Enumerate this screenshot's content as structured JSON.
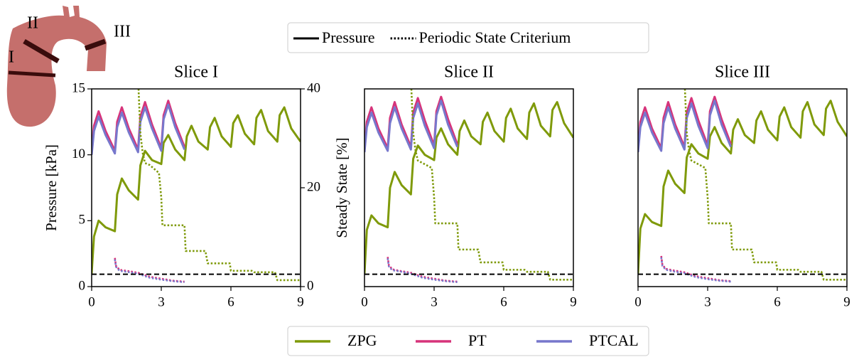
{
  "illustration": {
    "labels": [
      "I",
      "II",
      "III"
    ]
  },
  "line_style_legend": [
    {
      "label": "Pressure",
      "style": "solid"
    },
    {
      "label": "Periodic State Criterium",
      "style": "dotted"
    }
  ],
  "chart_data": [
    {
      "type": "line",
      "title": "Slice I",
      "y_label": "Pressure [kPa]",
      "y2_label": "Steady State [%]",
      "xlim": [
        0,
        9
      ],
      "xticks": [
        0,
        3,
        6,
        9
      ],
      "ylim": [
        0,
        15
      ],
      "yticks": [
        0,
        5,
        10,
        15
      ],
      "y2lim": [
        0,
        40
      ],
      "y2ticks": [
        0,
        20,
        40
      ],
      "threshold": 2.5,
      "series": [
        {
          "name": "ZPG",
          "color": "#7f9a0a",
          "style": "solid",
          "x": [
            0,
            0.1,
            0.3,
            0.6,
            1.0,
            1.1,
            1.3,
            1.6,
            2.0,
            2.1,
            2.3,
            2.6,
            3.0,
            3.1,
            3.3,
            3.6,
            4.0,
            4.1,
            4.3,
            4.6,
            5.0,
            5.1,
            5.3,
            5.6,
            6.0,
            6.1,
            6.3,
            6.6,
            7.0,
            7.1,
            7.3,
            7.6,
            8.0,
            8.1,
            8.3,
            8.6,
            9.0
          ],
          "values": [
            1.0,
            3.8,
            5.0,
            4.5,
            4.2,
            7.0,
            8.2,
            7.3,
            6.6,
            9.2,
            10.3,
            9.6,
            9.3,
            10.9,
            11.5,
            10.4,
            9.6,
            11.4,
            12.2,
            11.0,
            10.4,
            12.1,
            12.8,
            11.4,
            10.6,
            12.4,
            13.0,
            11.6,
            10.8,
            12.8,
            13.4,
            11.8,
            11.0,
            13.0,
            13.6,
            12.0,
            11.0
          ]
        },
        {
          "name": "PT",
          "color": "#d6337a",
          "style": "solid",
          "x": [
            0,
            0.1,
            0.3,
            0.6,
            1.0,
            1.1,
            1.3,
            1.6,
            2.0,
            2.1,
            2.3,
            2.6,
            3.0,
            3.1,
            3.3,
            3.6,
            4.0
          ],
          "values": [
            10.3,
            12.2,
            13.3,
            11.8,
            10.3,
            12.5,
            13.6,
            12.0,
            10.4,
            12.9,
            14.0,
            12.3,
            10.5,
            13.0,
            14.1,
            12.4,
            10.6
          ]
        },
        {
          "name": "PTCAL",
          "color": "#7777cc",
          "style": "solid",
          "x": [
            0,
            0.1,
            0.3,
            0.6,
            1.0,
            1.1,
            1.3,
            1.6,
            2.0,
            2.1,
            2.3,
            2.6,
            3.0,
            3.1,
            3.3,
            3.6,
            4.0
          ],
          "values": [
            10.0,
            11.8,
            12.9,
            11.5,
            10.1,
            12.1,
            13.2,
            11.7,
            10.2,
            12.5,
            13.6,
            12.0,
            10.3,
            12.7,
            13.8,
            12.1,
            10.4
          ]
        },
        {
          "name": "ZPG",
          "color": "#7f9a0a",
          "style": "dotted",
          "axis": "y2",
          "x": [
            2.02,
            2.1,
            2.2,
            2.3,
            2.5,
            2.9,
            3.0,
            3.05,
            4.0,
            4.05,
            4.9,
            5.0,
            5.95,
            6.0,
            6.9,
            7.0,
            7.9,
            8.0,
            9.0
          ],
          "values": [
            40,
            31,
            27,
            25,
            24.6,
            23,
            18,
            12.4,
            12.4,
            7.2,
            7.2,
            4.7,
            4.7,
            3.2,
            3.2,
            2.9,
            2.9,
            1.3,
            1.3
          ]
        },
        {
          "name": "PT",
          "color": "#d6337a",
          "style": "dotted",
          "axis": "y2",
          "x": [
            1.0,
            1.05,
            1.2,
            1.5,
            2.0,
            2.5,
            3.0,
            3.5,
            4.0
          ],
          "values": [
            5.8,
            4.2,
            3.4,
            3.2,
            2.8,
            2.0,
            1.6,
            1.2,
            1.0
          ]
        },
        {
          "name": "PTCAL",
          "color": "#7777cc",
          "style": "dotted",
          "axis": "y2",
          "x": [
            1.0,
            1.05,
            1.2,
            1.5,
            2.0,
            2.5,
            3.0,
            3.5,
            4.0
          ],
          "values": [
            5.5,
            4.0,
            3.2,
            3.0,
            2.6,
            1.8,
            1.4,
            1.1,
            0.9
          ]
        }
      ]
    },
    {
      "type": "line",
      "title": "Slice II",
      "xlim": [
        0,
        9
      ],
      "xticks": [
        0,
        3,
        6,
        9
      ],
      "ylim": [
        0,
        15
      ],
      "y2lim": [
        0,
        40
      ],
      "threshold": 2.5,
      "series": [
        {
          "name": "ZPG",
          "color": "#7f9a0a",
          "style": "solid",
          "x": [
            0,
            0.1,
            0.3,
            0.6,
            1.0,
            1.1,
            1.3,
            1.6,
            2.0,
            2.1,
            2.3,
            2.6,
            3.0,
            3.1,
            3.3,
            3.6,
            4.0,
            4.1,
            4.3,
            4.6,
            5.0,
            5.1,
            5.3,
            5.6,
            6.0,
            6.1,
            6.3,
            6.6,
            7.0,
            7.1,
            7.3,
            7.6,
            8.0,
            8.1,
            8.3,
            8.6,
            9.0
          ],
          "values": [
            1.0,
            4.3,
            5.4,
            4.8,
            4.5,
            7.5,
            8.7,
            7.7,
            7.0,
            9.7,
            10.7,
            10.0,
            9.6,
            11.3,
            12.0,
            10.8,
            10.0,
            11.8,
            12.6,
            11.4,
            10.8,
            12.5,
            13.2,
            11.8,
            11.0,
            12.8,
            13.5,
            12.0,
            11.2,
            13.2,
            13.9,
            12.2,
            11.4,
            13.4,
            14.0,
            12.4,
            11.3
          ]
        },
        {
          "name": "PT",
          "color": "#d6337a",
          "style": "solid",
          "x": [
            0,
            0.1,
            0.3,
            0.6,
            1.0,
            1.1,
            1.3,
            1.6,
            2.0,
            2.1,
            2.3,
            2.6,
            3.0,
            3.1,
            3.3,
            3.6,
            4.0
          ],
          "values": [
            10.5,
            12.5,
            13.6,
            12.0,
            10.5,
            12.8,
            14.0,
            12.3,
            10.6,
            13.2,
            14.3,
            12.6,
            10.7,
            13.3,
            14.4,
            12.7,
            10.8
          ]
        },
        {
          "name": "PTCAL",
          "color": "#7777cc",
          "style": "solid",
          "x": [
            0,
            0.1,
            0.3,
            0.6,
            1.0,
            1.1,
            1.3,
            1.6,
            2.0,
            2.1,
            2.3,
            2.6,
            3.0,
            3.1,
            3.3,
            3.6,
            4.0
          ],
          "values": [
            10.2,
            12.1,
            13.2,
            11.7,
            10.3,
            12.4,
            13.6,
            12.0,
            10.4,
            12.8,
            13.9,
            12.2,
            10.5,
            13.0,
            14.1,
            12.3,
            10.6
          ]
        },
        {
          "name": "ZPG",
          "color": "#7f9a0a",
          "style": "dotted",
          "axis": "y2",
          "x": [
            2.02,
            2.1,
            2.2,
            2.3,
            2.5,
            2.9,
            3.0,
            3.05,
            4.0,
            4.05,
            4.9,
            5.0,
            5.95,
            6.0,
            6.9,
            7.0,
            7.9,
            8.0,
            9.0
          ],
          "values": [
            40,
            31,
            27.5,
            25.5,
            25,
            24,
            18,
            12.8,
            12.8,
            7.5,
            7.5,
            4.9,
            4.9,
            3.4,
            3.4,
            3.0,
            3.0,
            1.4,
            1.4
          ]
        },
        {
          "name": "PT",
          "color": "#d6337a",
          "style": "dotted",
          "axis": "y2",
          "x": [
            1.0,
            1.05,
            1.2,
            1.5,
            2.0,
            2.5,
            3.0,
            3.5,
            4.0
          ],
          "values": [
            6.0,
            4.3,
            3.5,
            3.2,
            2.8,
            2.0,
            1.6,
            1.2,
            1.0
          ]
        },
        {
          "name": "PTCAL",
          "color": "#7777cc",
          "style": "dotted",
          "axis": "y2",
          "x": [
            1.0,
            1.05,
            1.2,
            1.5,
            2.0,
            2.5,
            3.0,
            3.5,
            4.0
          ],
          "values": [
            5.7,
            4.1,
            3.3,
            3.1,
            2.6,
            1.8,
            1.4,
            1.1,
            0.9
          ]
        }
      ]
    },
    {
      "type": "line",
      "title": "Slice III",
      "xlim": [
        0,
        9
      ],
      "xticks": [
        0,
        3,
        6,
        9
      ],
      "ylim": [
        0,
        15
      ],
      "y2lim": [
        0,
        40
      ],
      "threshold": 2.5,
      "series": [
        {
          "name": "ZPG",
          "color": "#7f9a0a",
          "style": "solid",
          "x": [
            0,
            0.1,
            0.3,
            0.6,
            1.0,
            1.1,
            1.3,
            1.6,
            2.0,
            2.1,
            2.3,
            2.6,
            3.0,
            3.1,
            3.3,
            3.6,
            4.0,
            4.1,
            4.3,
            4.6,
            5.0,
            5.1,
            5.3,
            5.6,
            6.0,
            6.1,
            6.3,
            6.6,
            7.0,
            7.1,
            7.3,
            7.6,
            8.0,
            8.1,
            8.3,
            8.6,
            9.0
          ],
          "values": [
            1.0,
            4.4,
            5.5,
            4.9,
            4.6,
            7.6,
            8.8,
            7.8,
            7.1,
            9.8,
            10.8,
            10.1,
            9.7,
            11.4,
            12.1,
            10.9,
            10.1,
            11.9,
            12.7,
            11.5,
            10.9,
            12.6,
            13.3,
            11.9,
            11.1,
            12.9,
            13.6,
            12.1,
            11.3,
            13.3,
            14.0,
            12.3,
            11.5,
            13.5,
            14.1,
            12.5,
            11.4
          ]
        },
        {
          "name": "PT",
          "color": "#d6337a",
          "style": "solid",
          "x": [
            0,
            0.1,
            0.3,
            0.6,
            1.0,
            1.1,
            1.3,
            1.6,
            2.0,
            2.1,
            2.3,
            2.6,
            3.0,
            3.1,
            3.3,
            3.6,
            4.0
          ],
          "values": [
            10.5,
            12.5,
            13.6,
            12.0,
            10.5,
            12.8,
            14.0,
            12.3,
            10.6,
            13.2,
            14.3,
            12.6,
            10.7,
            13.3,
            14.4,
            12.7,
            10.8
          ]
        },
        {
          "name": "PTCAL",
          "color": "#7777cc",
          "style": "solid",
          "x": [
            0,
            0.1,
            0.3,
            0.6,
            1.0,
            1.1,
            1.3,
            1.6,
            2.0,
            2.1,
            2.3,
            2.6,
            3.0,
            3.1,
            3.3,
            3.6,
            4.0
          ],
          "values": [
            10.2,
            12.1,
            13.2,
            11.7,
            10.3,
            12.4,
            13.6,
            12.0,
            10.4,
            12.8,
            13.9,
            12.2,
            10.5,
            13.0,
            14.1,
            12.3,
            10.6
          ]
        },
        {
          "name": "ZPG",
          "color": "#7f9a0a",
          "style": "dotted",
          "axis": "y2",
          "x": [
            2.02,
            2.1,
            2.2,
            2.3,
            2.5,
            2.9,
            3.0,
            3.05,
            4.0,
            4.05,
            4.9,
            5.0,
            5.95,
            6.0,
            6.9,
            7.0,
            7.9,
            8.0,
            9.0
          ],
          "values": [
            40,
            31,
            27.5,
            25.5,
            25,
            24,
            18,
            12.8,
            12.8,
            7.5,
            7.5,
            4.9,
            4.9,
            3.4,
            3.4,
            3.0,
            3.0,
            1.4,
            1.4
          ]
        },
        {
          "name": "PT",
          "color": "#d6337a",
          "style": "dotted",
          "axis": "y2",
          "x": [
            1.0,
            1.05,
            1.2,
            1.5,
            2.0,
            2.5,
            3.0,
            3.5,
            4.0
          ],
          "values": [
            6.2,
            4.4,
            3.6,
            3.3,
            2.9,
            2.1,
            1.7,
            1.3,
            1.1
          ]
        },
        {
          "name": "PTCAL",
          "color": "#7777cc",
          "style": "dotted",
          "axis": "y2",
          "x": [
            1.0,
            1.05,
            1.2,
            1.5,
            2.0,
            2.5,
            3.0,
            3.5,
            4.0
          ],
          "values": [
            5.9,
            4.2,
            3.4,
            3.1,
            2.7,
            1.9,
            1.5,
            1.2,
            1.0
          ]
        }
      ]
    }
  ]
}
